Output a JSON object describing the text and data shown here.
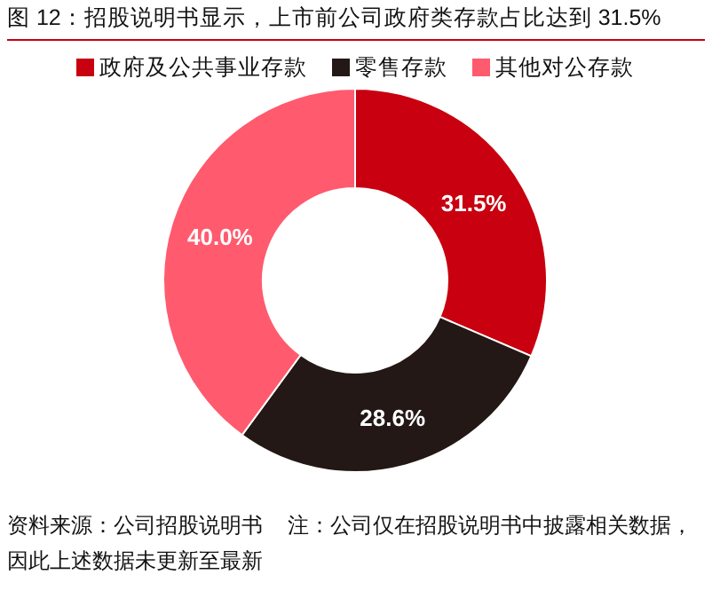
{
  "chart_data": {
    "type": "donut",
    "title": "图 12：招股说明书显示，上市前公司政府类存款占比达到 31.5%",
    "categories": [
      "政府及公共事业存款",
      "零售存款",
      "其他对公存款"
    ],
    "values": [
      31.5,
      28.6,
      40.0
    ],
    "colors": [
      "#c8000f",
      "#231815",
      "#ff5a6e"
    ],
    "value_labels": [
      "31.5%",
      "28.6%",
      "40.0%"
    ],
    "legend": "top",
    "annotations": [
      "资料来源：公司招股说明书",
      "注：公司仅在招股说明书中披露相关数据，因此上述数据未更新至最新"
    ]
  }
}
